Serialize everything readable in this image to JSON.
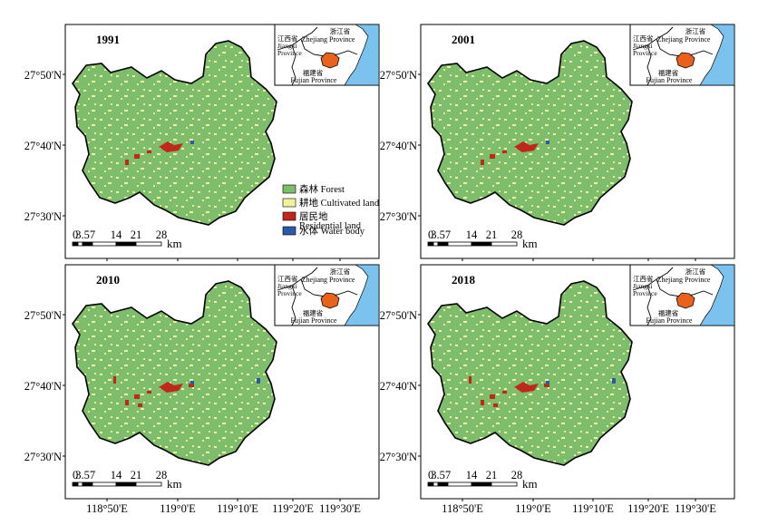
{
  "panels": [
    {
      "year": "1991"
    },
    {
      "year": "2001"
    },
    {
      "year": "2010"
    },
    {
      "year": "2018"
    }
  ],
  "lat_labels": [
    "27°50'N",
    "27°40'N",
    "27°30'N"
  ],
  "lon_labels": [
    "118°50'E",
    "119°0'E",
    "119°10'E",
    "119°20'E",
    "119°30'E"
  ],
  "scale_bar": {
    "ticks": [
      "0",
      "3.5",
      "7",
      "14",
      "21",
      "28"
    ],
    "unit": "km"
  },
  "inset": {
    "zhejiang_cn": "浙江省",
    "zhejiang_en": "Zhejiang Province",
    "jiangxi_cn": "江西省",
    "jiangxi_en_1": "Jiangxi",
    "jiangxi_en_2": "Province",
    "fujian_cn": "福建省",
    "fujian_en": "Fujian Province"
  },
  "legend": [
    {
      "label": "森林 Forest",
      "color": "#7dbd6c"
    },
    {
      "label": "耕地 Cultivated land",
      "color": "#f2f29e"
    },
    {
      "label": "居民地",
      "label2": "Residential land",
      "color": "#c0281b"
    },
    {
      "label": "水体 Water body",
      "color": "#2e58a8"
    }
  ],
  "colors": {
    "forest": "#7dbd6c",
    "cultivated": "#f2f29e",
    "residential": "#c0281b",
    "water": "#2e58a8",
    "sea": "#7cc2ee",
    "inset_region": "#e8621c"
  }
}
